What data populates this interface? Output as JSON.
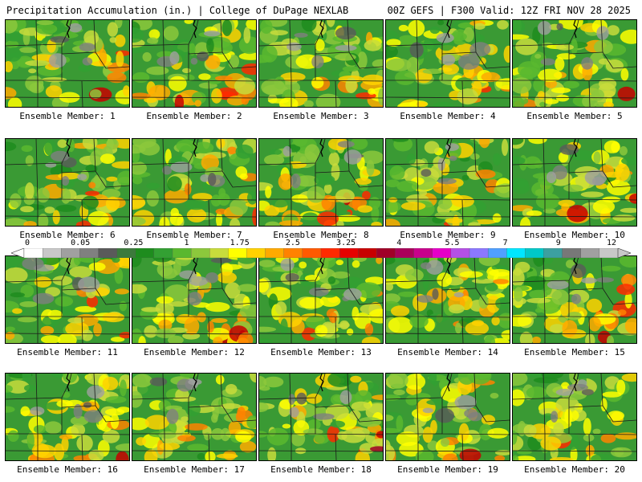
{
  "header": {
    "left": "Precipitation Accumulation (in.) | College of DuPage NEXLAB",
    "right": "00Z GEFS | F300 Valid: 12Z FRI NOV 28 2025"
  },
  "panels": [
    {
      "label": "Ensemble Member: 1"
    },
    {
      "label": "Ensemble Member: 2"
    },
    {
      "label": "Ensemble Member: 3"
    },
    {
      "label": "Ensemble Member: 4"
    },
    {
      "label": "Ensemble Member: 5"
    },
    {
      "label": "Ensemble Member: 6"
    },
    {
      "label": "Ensemble Member: 7"
    },
    {
      "label": "Ensemble Member: 8"
    },
    {
      "label": "Ensemble Member: 9"
    },
    {
      "label": "Ensemble Member: 10"
    },
    {
      "label": "Ensemble Member: 11"
    },
    {
      "label": "Ensemble Member: 12"
    },
    {
      "label": "Ensemble Member: 13"
    },
    {
      "label": "Ensemble Member: 14"
    },
    {
      "label": "Ensemble Member: 15"
    },
    {
      "label": "Ensemble Member: 16"
    },
    {
      "label": "Ensemble Member: 17"
    },
    {
      "label": "Ensemble Member: 18"
    },
    {
      "label": "Ensemble Member: 19"
    },
    {
      "label": "Ensemble Member: 20"
    }
  ],
  "colorbar": {
    "tick_labels": [
      "0",
      "0.05",
      "0.25",
      "1",
      "1.75",
      "2.5",
      "3.25",
      "4",
      "5.5",
      "7",
      "9",
      "12"
    ],
    "colors": [
      "#ffffff",
      "#c8c8c8",
      "#a0a0a0",
      "#808080",
      "#5a5a5a",
      "#3c7a3c",
      "#1e8c1e",
      "#33a033",
      "#5ab82f",
      "#8cc83c",
      "#c8dc3c",
      "#ffff00",
      "#ffd200",
      "#ffaa00",
      "#ff8200",
      "#ff5a00",
      "#ff2a00",
      "#e60000",
      "#c80000",
      "#a00028",
      "#aa005a",
      "#c8008c",
      "#e600c8",
      "#b450e6",
      "#8c78ff",
      "#50a0ff",
      "#00e6ff",
      "#00c8c8",
      "#3ca0a0",
      "#787878",
      "#a0a0a0",
      "#c8c8c8"
    ]
  }
}
